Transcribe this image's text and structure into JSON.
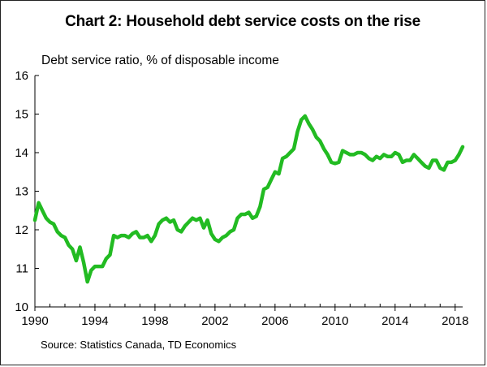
{
  "chart_data": {
    "type": "line",
    "title": "Chart 2: Household debt service costs on the rise",
    "ylabel": "Debt service ratio, % of disposable income",
    "xlabel": "",
    "source": "Source: Statistics Canada, TD Economics",
    "xlim": [
      1990,
      2018.5
    ],
    "ylim": [
      10,
      16
    ],
    "x_ticks": [
      "1990",
      "1994",
      "1998",
      "2002",
      "2006",
      "2010",
      "2014",
      "2018"
    ],
    "y_ticks": [
      "10",
      "11",
      "12",
      "13",
      "14",
      "15",
      "16"
    ],
    "grid": false,
    "series": [
      {
        "name": "Debt service ratio",
        "color": "#22bb22",
        "points": [
          [
            1990.0,
            12.25
          ],
          [
            1990.25,
            12.7
          ],
          [
            1990.5,
            12.5
          ],
          [
            1990.75,
            12.3
          ],
          [
            1991.0,
            12.2
          ],
          [
            1991.25,
            12.15
          ],
          [
            1991.5,
            11.95
          ],
          [
            1991.75,
            11.85
          ],
          [
            1992.0,
            11.8
          ],
          [
            1992.25,
            11.6
          ],
          [
            1992.5,
            11.5
          ],
          [
            1992.75,
            11.2
          ],
          [
            1993.0,
            11.55
          ],
          [
            1993.25,
            11.15
          ],
          [
            1993.5,
            10.65
          ],
          [
            1993.75,
            10.95
          ],
          [
            1994.0,
            11.05
          ],
          [
            1994.25,
            11.05
          ],
          [
            1994.5,
            11.05
          ],
          [
            1994.75,
            11.25
          ],
          [
            1995.0,
            11.35
          ],
          [
            1995.25,
            11.85
          ],
          [
            1995.5,
            11.8
          ],
          [
            1995.75,
            11.85
          ],
          [
            1996.0,
            11.85
          ],
          [
            1996.25,
            11.8
          ],
          [
            1996.5,
            11.9
          ],
          [
            1996.75,
            11.95
          ],
          [
            1997.0,
            11.8
          ],
          [
            1997.25,
            11.8
          ],
          [
            1997.5,
            11.85
          ],
          [
            1997.75,
            11.7
          ],
          [
            1998.0,
            11.85
          ],
          [
            1998.25,
            12.15
          ],
          [
            1998.5,
            12.25
          ],
          [
            1998.75,
            12.3
          ],
          [
            1999.0,
            12.2
          ],
          [
            1999.25,
            12.25
          ],
          [
            1999.5,
            12.0
          ],
          [
            1999.75,
            11.95
          ],
          [
            2000.0,
            12.1
          ],
          [
            2000.25,
            12.2
          ],
          [
            2000.5,
            12.3
          ],
          [
            2000.75,
            12.25
          ],
          [
            2001.0,
            12.3
          ],
          [
            2001.25,
            12.05
          ],
          [
            2001.5,
            12.25
          ],
          [
            2001.75,
            11.9
          ],
          [
            2002.0,
            11.75
          ],
          [
            2002.25,
            11.7
          ],
          [
            2002.5,
            11.8
          ],
          [
            2002.75,
            11.85
          ],
          [
            2003.0,
            11.95
          ],
          [
            2003.25,
            12.0
          ],
          [
            2003.5,
            12.3
          ],
          [
            2003.75,
            12.4
          ],
          [
            2004.0,
            12.4
          ],
          [
            2004.25,
            12.45
          ],
          [
            2004.5,
            12.3
          ],
          [
            2004.75,
            12.35
          ],
          [
            2005.0,
            12.6
          ],
          [
            2005.25,
            13.05
          ],
          [
            2005.5,
            13.1
          ],
          [
            2005.75,
            13.3
          ],
          [
            2006.0,
            13.5
          ],
          [
            2006.25,
            13.45
          ],
          [
            2006.5,
            13.85
          ],
          [
            2006.75,
            13.9
          ],
          [
            2007.0,
            14.0
          ],
          [
            2007.25,
            14.1
          ],
          [
            2007.5,
            14.55
          ],
          [
            2007.75,
            14.85
          ],
          [
            2008.0,
            14.95
          ],
          [
            2008.25,
            14.75
          ],
          [
            2008.5,
            14.6
          ],
          [
            2008.75,
            14.4
          ],
          [
            2009.0,
            14.3
          ],
          [
            2009.25,
            14.1
          ],
          [
            2009.5,
            13.95
          ],
          [
            2009.75,
            13.75
          ],
          [
            2010.0,
            13.72
          ],
          [
            2010.25,
            13.75
          ],
          [
            2010.5,
            14.05
          ],
          [
            2010.75,
            14.0
          ],
          [
            2011.0,
            13.95
          ],
          [
            2011.25,
            13.95
          ],
          [
            2011.5,
            14.0
          ],
          [
            2011.75,
            14.0
          ],
          [
            2012.0,
            13.95
          ],
          [
            2012.25,
            13.85
          ],
          [
            2012.5,
            13.8
          ],
          [
            2012.75,
            13.9
          ],
          [
            2013.0,
            13.85
          ],
          [
            2013.25,
            13.95
          ],
          [
            2013.5,
            13.9
          ],
          [
            2013.75,
            13.9
          ],
          [
            2014.0,
            14.0
          ],
          [
            2014.25,
            13.95
          ],
          [
            2014.5,
            13.75
          ],
          [
            2014.75,
            13.8
          ],
          [
            2015.0,
            13.8
          ],
          [
            2015.25,
            13.95
          ],
          [
            2015.5,
            13.85
          ],
          [
            2015.75,
            13.75
          ],
          [
            2016.0,
            13.65
          ],
          [
            2016.25,
            13.6
          ],
          [
            2016.5,
            13.8
          ],
          [
            2016.75,
            13.8
          ],
          [
            2017.0,
            13.6
          ],
          [
            2017.25,
            13.55
          ],
          [
            2017.5,
            13.75
          ],
          [
            2017.75,
            13.75
          ],
          [
            2018.0,
            13.8
          ],
          [
            2018.25,
            13.95
          ],
          [
            2018.5,
            14.15
          ]
        ]
      }
    ]
  }
}
